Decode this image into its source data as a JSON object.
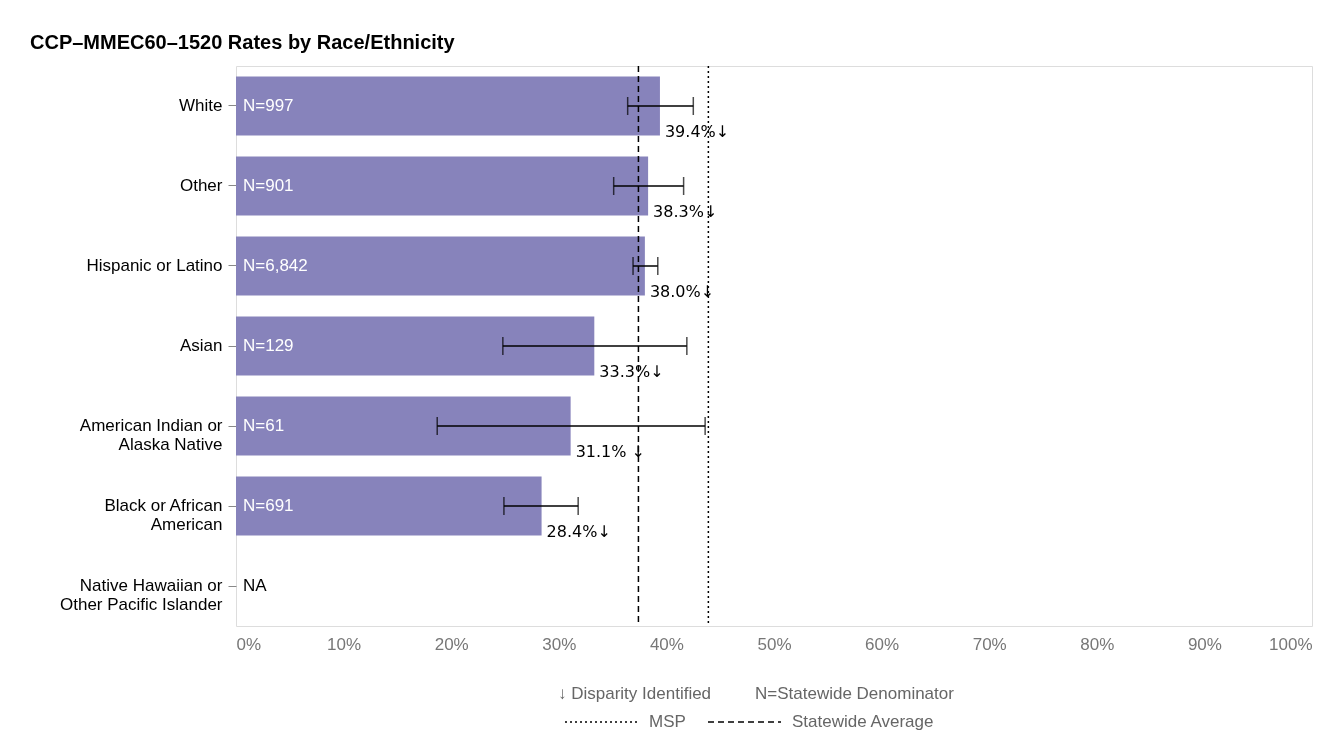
{
  "chart_data": {
    "type": "bar",
    "orientation": "horizontal",
    "title": "CCP–MMEC60–1520 Rates by Race/Ethnicity",
    "categories": [
      "White",
      "Other",
      "Hispanic or Latino",
      "Asian",
      "American Indian or Alaska Native",
      "Black or African American",
      "Native Hawaiian or Other Pacific Islander"
    ],
    "values": [
      39.4,
      38.3,
      38.0,
      33.3,
      31.1,
      28.4,
      null
    ],
    "color": "#8783bb",
    "errors": [
      [
        36.4,
        42.5
      ],
      [
        35.1,
        41.6
      ],
      [
        36.9,
        39.2
      ],
      [
        24.8,
        41.9
      ],
      [
        18.7,
        43.6
      ],
      [
        24.9,
        31.8
      ],
      null
    ],
    "value_labels": [
      "39.4%↓",
      "38.3%↓",
      "38.0%↓",
      "33.3%↓",
      "31.1% ↓",
      "28.4%↓",
      null
    ],
    "xlim": [
      0,
      100
    ],
    "xticks": [
      {
        "value": 0,
        "label": "0%"
      },
      {
        "value": 10,
        "label": "10%"
      },
      {
        "value": 20,
        "label": "20%"
      },
      {
        "value": 30,
        "label": "30%"
      },
      {
        "value": 40,
        "label": "40%"
      },
      {
        "value": 50,
        "label": "50%"
      },
      {
        "value": 60,
        "label": "60%"
      },
      {
        "value": 70,
        "label": "70%"
      },
      {
        "value": 80,
        "label": "80%"
      },
      {
        "value": 90,
        "label": "90%"
      },
      {
        "value": 100,
        "label": "100%"
      }
    ],
    "ref_lines": [
      {
        "axis": "x",
        "value": 43.9,
        "label": "MSP",
        "line_style": "dotted"
      },
      {
        "axis": "x",
        "value": 37.4,
        "label": "Statewide Average",
        "line_style": "dashed"
      }
    ],
    "annotations": [
      "N=997",
      "N=901",
      "N=6,842",
      "N=129",
      "N=61",
      "N=691",
      "NA",
      "↓ Disparity Identified",
      "N=Statewide Denominator"
    ],
    "legend": "bottom",
    "grid": false
  }
}
